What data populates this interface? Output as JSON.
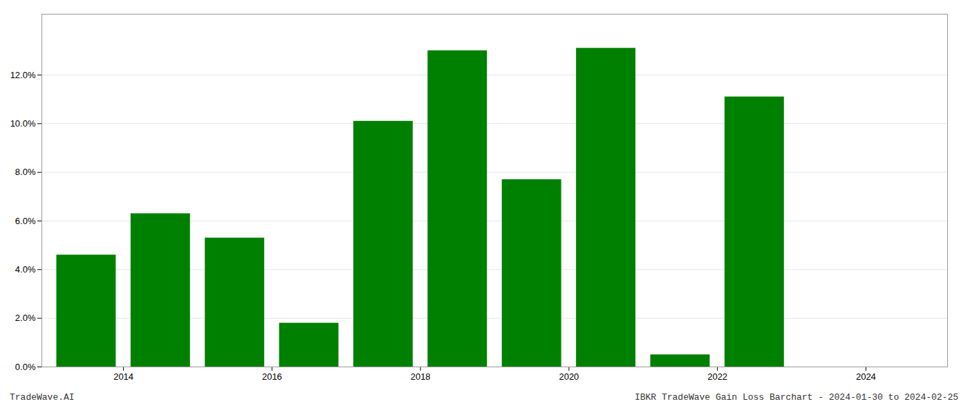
{
  "chart_data": {
    "type": "bar",
    "x": [
      2013,
      2014,
      2015,
      2016,
      2017,
      2018,
      2019,
      2020,
      2021,
      2022,
      2023
    ],
    "values": [
      0.046,
      0.063,
      0.053,
      0.018,
      0.101,
      0.13,
      0.077,
      0.131,
      0.005,
      0.111,
      0.0
    ],
    "color": "#008000",
    "xlim": [
      2012.4,
      2024.6
    ],
    "xticks": [
      {
        "value": 2013.5,
        "label": "2014"
      },
      {
        "value": 2015.5,
        "label": "2016"
      },
      {
        "value": 2017.5,
        "label": "2018"
      },
      {
        "value": 2019.5,
        "label": "2020"
      },
      {
        "value": 2021.5,
        "label": "2022"
      },
      {
        "value": 2023.5,
        "label": "2024"
      }
    ],
    "ylim": [
      0,
      0.145
    ],
    "yticks": [
      {
        "value": 0.0,
        "label": "0.0%"
      },
      {
        "value": 0.02,
        "label": "2.0%"
      },
      {
        "value": 0.04,
        "label": "4.0%"
      },
      {
        "value": 0.06,
        "label": "6.0%"
      },
      {
        "value": 0.08,
        "label": "8.0%"
      },
      {
        "value": 0.1,
        "label": "10.0%"
      },
      {
        "value": 0.12,
        "label": "12.0%"
      }
    ],
    "grid": true,
    "annotations": [
      "TradeWave.AI",
      "IBKR TradeWave Gain Loss Barchart - 2024-01-30 to 2024-02-25"
    ]
  }
}
